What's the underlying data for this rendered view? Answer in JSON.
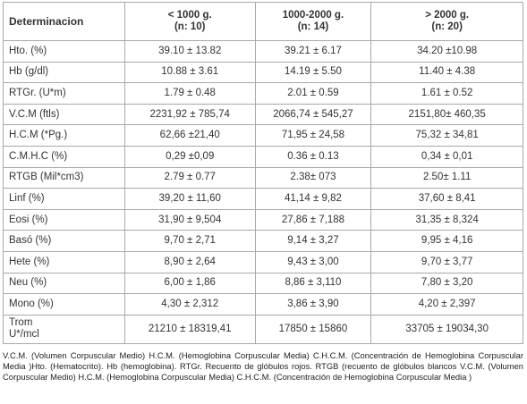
{
  "table": {
    "header": [
      [
        "Determinacion"
      ],
      [
        "< 1000 g.",
        "(n: 10)"
      ],
      [
        "1000-2000 g.",
        "(n: 14)"
      ],
      [
        "> 2000 g.",
        "(n: 20)"
      ]
    ],
    "rows": [
      [
        [
          "Hto. (%)"
        ],
        [
          "39.10 ± 13.82"
        ],
        [
          "39.21 ± 6.17"
        ],
        [
          "34.20 ±10.98"
        ]
      ],
      [
        [
          "Hb (g/dl)"
        ],
        [
          "10.88 ± 3.61"
        ],
        [
          "14.19 ± 5.50"
        ],
        [
          "11.40 ± 4.38"
        ]
      ],
      [
        [
          "RTGr. (U*m)"
        ],
        [
          "1.79 ± 0.48"
        ],
        [
          "2.01 ± 0.59"
        ],
        [
          "1.61 ± 0.52"
        ]
      ],
      [
        [
          "V.C.M (ftls)"
        ],
        [
          "2231,92 ± 785,74"
        ],
        [
          "2066,74 ± 545,27"
        ],
        [
          "2151,80± 460,35"
        ]
      ],
      [
        [
          "H.C.M (*Pg.)"
        ],
        [
          "62,66 ±21,40"
        ],
        [
          "71,95 ± 24,58"
        ],
        [
          "75,32 ± 34,81"
        ]
      ],
      [
        [
          "C.M.H.C (%)"
        ],
        [
          "0,29 ±0,09"
        ],
        [
          "0.36 ± 0.13"
        ],
        [
          "0,34 ± 0,01"
        ]
      ],
      [
        [
          "RTGB (Mil*cm3)"
        ],
        [
          "2.79 ± 0.77"
        ],
        [
          "2.38± 073"
        ],
        [
          "2.50± 1.11"
        ]
      ],
      [
        [
          "Linf (%)"
        ],
        [
          "39,20 ± 11,60"
        ],
        [
          "41,14 ± 9,82"
        ],
        [
          "37,60 ± 8,41"
        ]
      ],
      [
        [
          "Eosi (%)"
        ],
        [
          "31,90 ± 9,504"
        ],
        [
          "27,86 ± 7,188"
        ],
        [
          "31,35 ± 8,324"
        ]
      ],
      [
        [
          "Basó (%)"
        ],
        [
          "9,70 ± 2,71"
        ],
        [
          "9,14 ± 3,27"
        ],
        [
          "9,95 ± 4,16"
        ]
      ],
      [
        [
          "Hete (%)"
        ],
        [
          "8,90 ± 2,64"
        ],
        [
          "9,43 ± 3,00"
        ],
        [
          "9,70 ± 3,77"
        ]
      ],
      [
        [
          "Neu (%)"
        ],
        [
          "6,00 ± 1,86"
        ],
        [
          "8,86 ± 3,110"
        ],
        [
          "7,80 ± 3,20"
        ]
      ],
      [
        [
          "Mono (%)"
        ],
        [
          "4,30 ± 2,312"
        ],
        [
          "3,86 ± 3,90"
        ],
        [
          "4,20 ± 2,397"
        ]
      ],
      [
        [
          "Trom",
          "U*/mcl"
        ],
        [
          "21210 ± 18319,41"
        ],
        [
          "17850 ± 15860"
        ],
        [
          "33705 ± 19034,30"
        ]
      ]
    ]
  },
  "footnote": "V.C.M. (Volumen Corpuscular Medio) H.C.M. (Hemoglobina Corpuscular Media) C.H.C.M. (Concentración de Hemoglobina Corpuscular Media )Hto. (Hematocrito). Hb (hemoglobina). RTGr. Recuento de glóbulos rojos. RTGB (recuento de glóbulos blancos V.C.M. (Volumen Corpuscular Medio) H.C.M. (Hemoglobina Corpuscular Media) C.H.C.M. (Concentración de Hemoglobina Corpuscular Media )"
}
